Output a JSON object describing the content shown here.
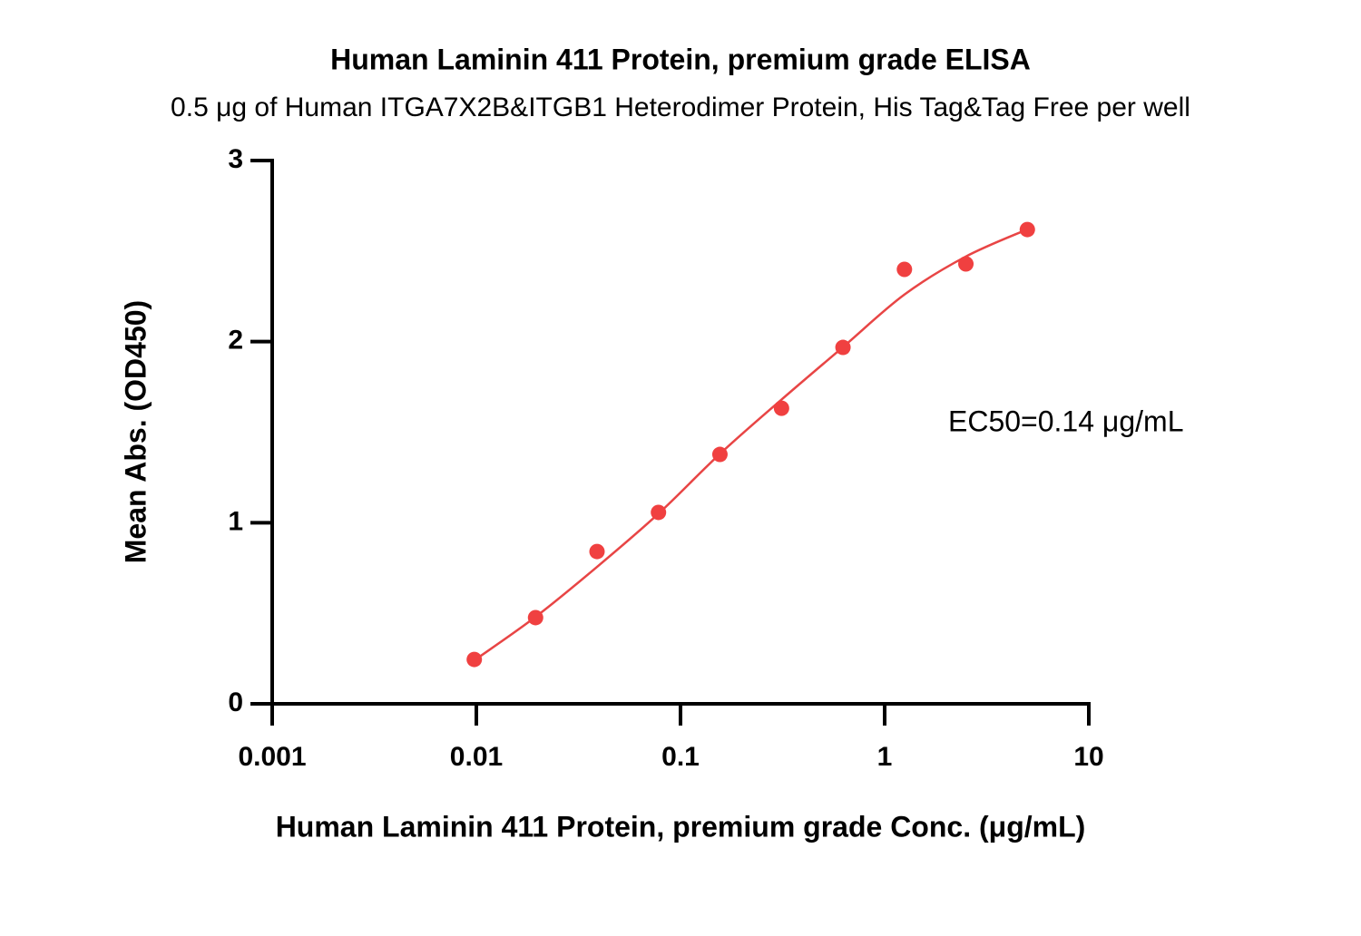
{
  "chart_data": {
    "type": "scatter",
    "title": "Human Laminin 411 Protein, premium grade ELISA",
    "subtitle": "0.5 μg of Human ITGA7X2B&ITGB1 Heterodimer Protein, His Tag&Tag Free per well",
    "x_label": "Human Laminin 411 Protein, premium grade Conc. (μg/mL)",
    "y_label": "Mean Abs. (OD450)",
    "annotation": "EC50=0.14 μg/mL",
    "x_scale": "log",
    "x": [
      0.00977,
      0.0195,
      0.039,
      0.078,
      0.156,
      0.3125,
      0.625,
      1.25,
      2.5,
      5
    ],
    "series": [
      {
        "color": "#f04040",
        "values": [
          0.245,
          0.476,
          0.841,
          1.057,
          1.377,
          1.632,
          1.968,
          2.399,
          2.429,
          2.619
        ]
      }
    ],
    "fit": {
      "color": "#e84545",
      "values": [
        0.24,
        0.48,
        0.756,
        1.05,
        1.38,
        1.68,
        1.97,
        2.26,
        2.47,
        2.62
      ]
    },
    "xlim": [
      0.001,
      10
    ],
    "xticks": [
      0.001,
      0.01,
      0.1,
      1,
      10
    ],
    "ylim": [
      0,
      3
    ],
    "yticks": [
      0,
      1,
      2,
      3
    ],
    "grid": false
  }
}
